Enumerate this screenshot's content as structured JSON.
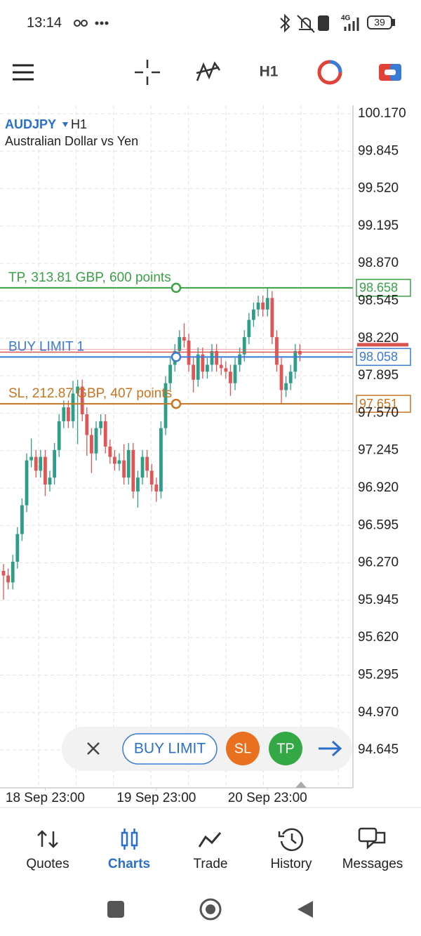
{
  "status_bar": {
    "time": "13:14",
    "battery": "39"
  },
  "toolbar": {
    "timeframe": "H1"
  },
  "chart_data": {
    "type": "candlestick",
    "symbol": "AUDJPY",
    "timeframe": "H1",
    "description": "Australian Dollar vs Yen",
    "open": [
      96.2,
      96.16,
      96.1,
      96.28,
      96.52,
      96.77,
      97.16,
      97.19,
      97.07,
      97.19,
      96.95,
      97.01,
      97.25,
      97.5,
      97.62,
      97.5,
      97.74,
      97.8,
      97.56,
      97.38,
      97.22,
      97.44,
      97.5,
      97.28,
      97.19,
      97.13,
      97.16,
      97.01,
      97.25,
      96.89,
      97.01,
      97.19,
      97.07,
      96.95,
      96.89,
      97.44,
      97.83,
      97.99,
      98.11,
      98.23,
      98.2,
      97.99,
      97.86,
      98.08,
      97.93,
      97.99,
      98.11,
      97.99,
      97.96,
      97.93,
      97.83,
      97.99,
      98.08,
      98.23,
      98.38,
      98.47,
      98.53,
      98.47,
      98.57,
      98.23,
      97.99,
      97.77,
      97.83,
      97.93,
      98.11
    ],
    "high": [
      96.26,
      96.22,
      96.34,
      96.58,
      96.83,
      97.22,
      97.35,
      97.25,
      97.25,
      97.25,
      97.07,
      97.31,
      97.56,
      97.68,
      97.68,
      97.85,
      97.86,
      97.86,
      97.62,
      97.44,
      97.5,
      97.56,
      97.56,
      97.34,
      97.25,
      97.22,
      97.3,
      97.31,
      97.31,
      97.07,
      97.25,
      97.25,
      97.13,
      97.01,
      97.5,
      97.89,
      98.05,
      98.17,
      98.29,
      98.35,
      98.26,
      98.05,
      98.14,
      98.14,
      98.05,
      98.17,
      98.17,
      98.05,
      98.02,
      97.99,
      98.05,
      98.14,
      98.29,
      98.44,
      98.53,
      98.59,
      98.59,
      98.66,
      98.63,
      98.29,
      98.05,
      97.89,
      97.99,
      98.17,
      98.17
    ],
    "low": [
      95.95,
      96.04,
      96.04,
      96.22,
      96.46,
      96.71,
      97.1,
      97.01,
      97.01,
      96.85,
      96.89,
      96.95,
      97.19,
      97.44,
      97.44,
      97.44,
      97.3,
      97.5,
      97.2,
      97.05,
      97.16,
      97.38,
      97.22,
      97.13,
      97.07,
      97.07,
      96.95,
      96.95,
      96.83,
      96.75,
      96.95,
      97.01,
      96.89,
      96.8,
      96.83,
      97.38,
      97.77,
      97.93,
      98.05,
      98.14,
      97.93,
      97.75,
      97.8,
      97.87,
      97.87,
      97.93,
      97.93,
      97.9,
      97.87,
      97.72,
      97.77,
      97.93,
      98.02,
      98.17,
      98.32,
      98.41,
      98.41,
      98.41,
      98.17,
      97.93,
      97.65,
      97.71,
      97.77,
      97.87,
      98.02
    ],
    "close": [
      96.16,
      96.1,
      96.28,
      96.52,
      96.77,
      97.16,
      97.19,
      97.07,
      97.19,
      96.95,
      97.01,
      97.25,
      97.5,
      97.62,
      97.5,
      97.74,
      97.8,
      97.56,
      97.38,
      97.22,
      97.44,
      97.5,
      97.28,
      97.19,
      97.13,
      97.16,
      97.01,
      97.25,
      96.89,
      97.01,
      97.19,
      97.07,
      96.95,
      96.89,
      97.44,
      97.83,
      97.99,
      98.11,
      98.23,
      98.2,
      97.99,
      97.86,
      98.08,
      97.93,
      97.99,
      98.11,
      97.99,
      97.96,
      97.93,
      97.83,
      97.99,
      98.08,
      98.23,
      98.38,
      98.47,
      98.53,
      98.47,
      98.57,
      98.23,
      97.99,
      97.77,
      97.83,
      97.93,
      98.11,
      98.08
    ],
    "up_color": "#2e9e88",
    "down_color": "#e05656",
    "ylim": [
      94.316,
      100.243
    ],
    "yticks": [
      {
        "value": 100.17,
        "label": "100.170"
      },
      99.845,
      {
        "value": 99.52,
        "label": "99.520"
      },
      99.195,
      {
        "value": 98.87,
        "label": "98.870"
      },
      98.545,
      {
        "value": 98.22,
        "label": "98.220"
      },
      97.895,
      {
        "value": 97.57,
        "label": "97.570"
      },
      97.245,
      {
        "value": 96.92,
        "label": "96.920"
      },
      96.595,
      {
        "value": 96.27,
        "label": "96.270"
      },
      95.945,
      {
        "value": 95.62,
        "label": "95.620"
      },
      95.295,
      {
        "value": 94.97,
        "label": "94.970"
      },
      94.645
    ],
    "xlim": [
      -0.76,
      75.45
    ],
    "xticks": [
      {
        "value": 9,
        "label": "18 Sep 23:00"
      },
      {
        "value": 33,
        "label": "19 Sep 23:00"
      },
      {
        "value": 57,
        "label": "20 Sep 23:00"
      }
    ],
    "grid": true,
    "levels": [
      {
        "name": "TP, 313.81 GBP, 600 points",
        "value": 98.658,
        "color": "#3aa147"
      },
      {
        "name": "BUY LIMIT 1",
        "value": 98.058,
        "color": "#3a7bd5"
      },
      {
        "name": "SL, 212.87 GBP, 407 points",
        "value": 97.651,
        "color": "#c87420"
      }
    ],
    "bid": 98.1,
    "bid_color": "#d9534f"
  },
  "order_bar": {
    "order": "BUY LIMIT",
    "sl": "SL",
    "tp": "TP"
  },
  "nav": [
    "Quotes",
    "Charts",
    "Trade",
    "History",
    "Messages"
  ]
}
